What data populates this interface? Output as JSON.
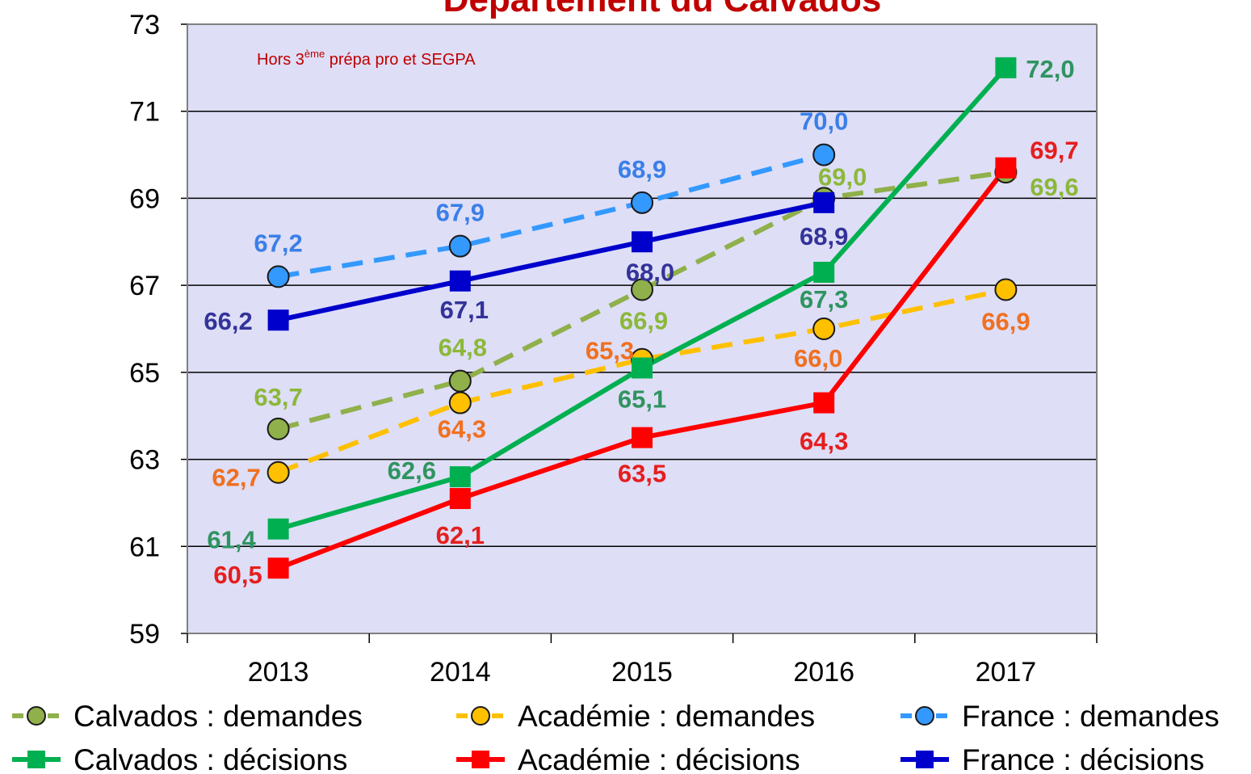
{
  "chart_data": {
    "type": "line",
    "title": "Département du Calvados",
    "annotation": {
      "text": "Hors 3",
      "superscript": "ème",
      "text_after": " prépa pro et SEGPA"
    },
    "categories": [
      "2013",
      "2014",
      "2015",
      "2016",
      "2017"
    ],
    "ylim": [
      59,
      73
    ],
    "yticks": [
      59,
      61,
      63,
      65,
      67,
      69,
      71,
      73
    ],
    "grid": true,
    "legend": "bottom",
    "series": [
      {
        "name": "Calvados : demandes",
        "color": "#8fb04a",
        "label_color": "#8cb83a",
        "dashed": true,
        "marker": "circle",
        "values": [
          63.7,
          64.8,
          66.9,
          69.0,
          69.6
        ],
        "value_labels": [
          "63,7",
          "64,8",
          "66,9",
          "69,0",
          "69,6"
        ]
      },
      {
        "name": "Académie : demandes",
        "color": "#ffc000",
        "label_color": "#f07020",
        "dashed": true,
        "marker": "circle",
        "values": [
          62.7,
          64.3,
          65.3,
          66.0,
          66.9
        ],
        "value_labels": [
          "62,7",
          "64,3",
          "65,3",
          "66,0",
          "66,9"
        ]
      },
      {
        "name": "France : demandes",
        "color": "#3399ff",
        "label_color": "#3a7fe8",
        "dashed": true,
        "marker": "circle",
        "values": [
          67.2,
          67.9,
          68.9,
          70.0,
          null
        ],
        "value_labels": [
          "67,2",
          "67,9",
          "68,9",
          "70,0",
          null
        ]
      },
      {
        "name": "Calvados : décisions",
        "color": "#00b050",
        "label_color": "#2f9460",
        "dashed": false,
        "marker": "square",
        "values": [
          61.4,
          62.6,
          65.1,
          67.3,
          72.0
        ],
        "value_labels": [
          "61,4",
          "62,6",
          "65,1",
          "67,3",
          "72,0"
        ]
      },
      {
        "name": "Académie : décisions",
        "color": "#ff0000",
        "label_color": "#e61e1e",
        "dashed": false,
        "marker": "square",
        "values": [
          60.5,
          62.1,
          63.5,
          64.3,
          69.7
        ],
        "value_labels": [
          "60,5",
          "62,1",
          "63,5",
          "64,3",
          "69,7"
        ]
      },
      {
        "name": "France : décisions",
        "color": "#0000cc",
        "label_color": "#333399",
        "dashed": false,
        "marker": "square",
        "values": [
          66.2,
          67.1,
          68.0,
          68.9,
          null
        ],
        "value_labels": [
          "66,2",
          "67,1",
          "68,0",
          "68,9",
          null
        ]
      }
    ]
  }
}
